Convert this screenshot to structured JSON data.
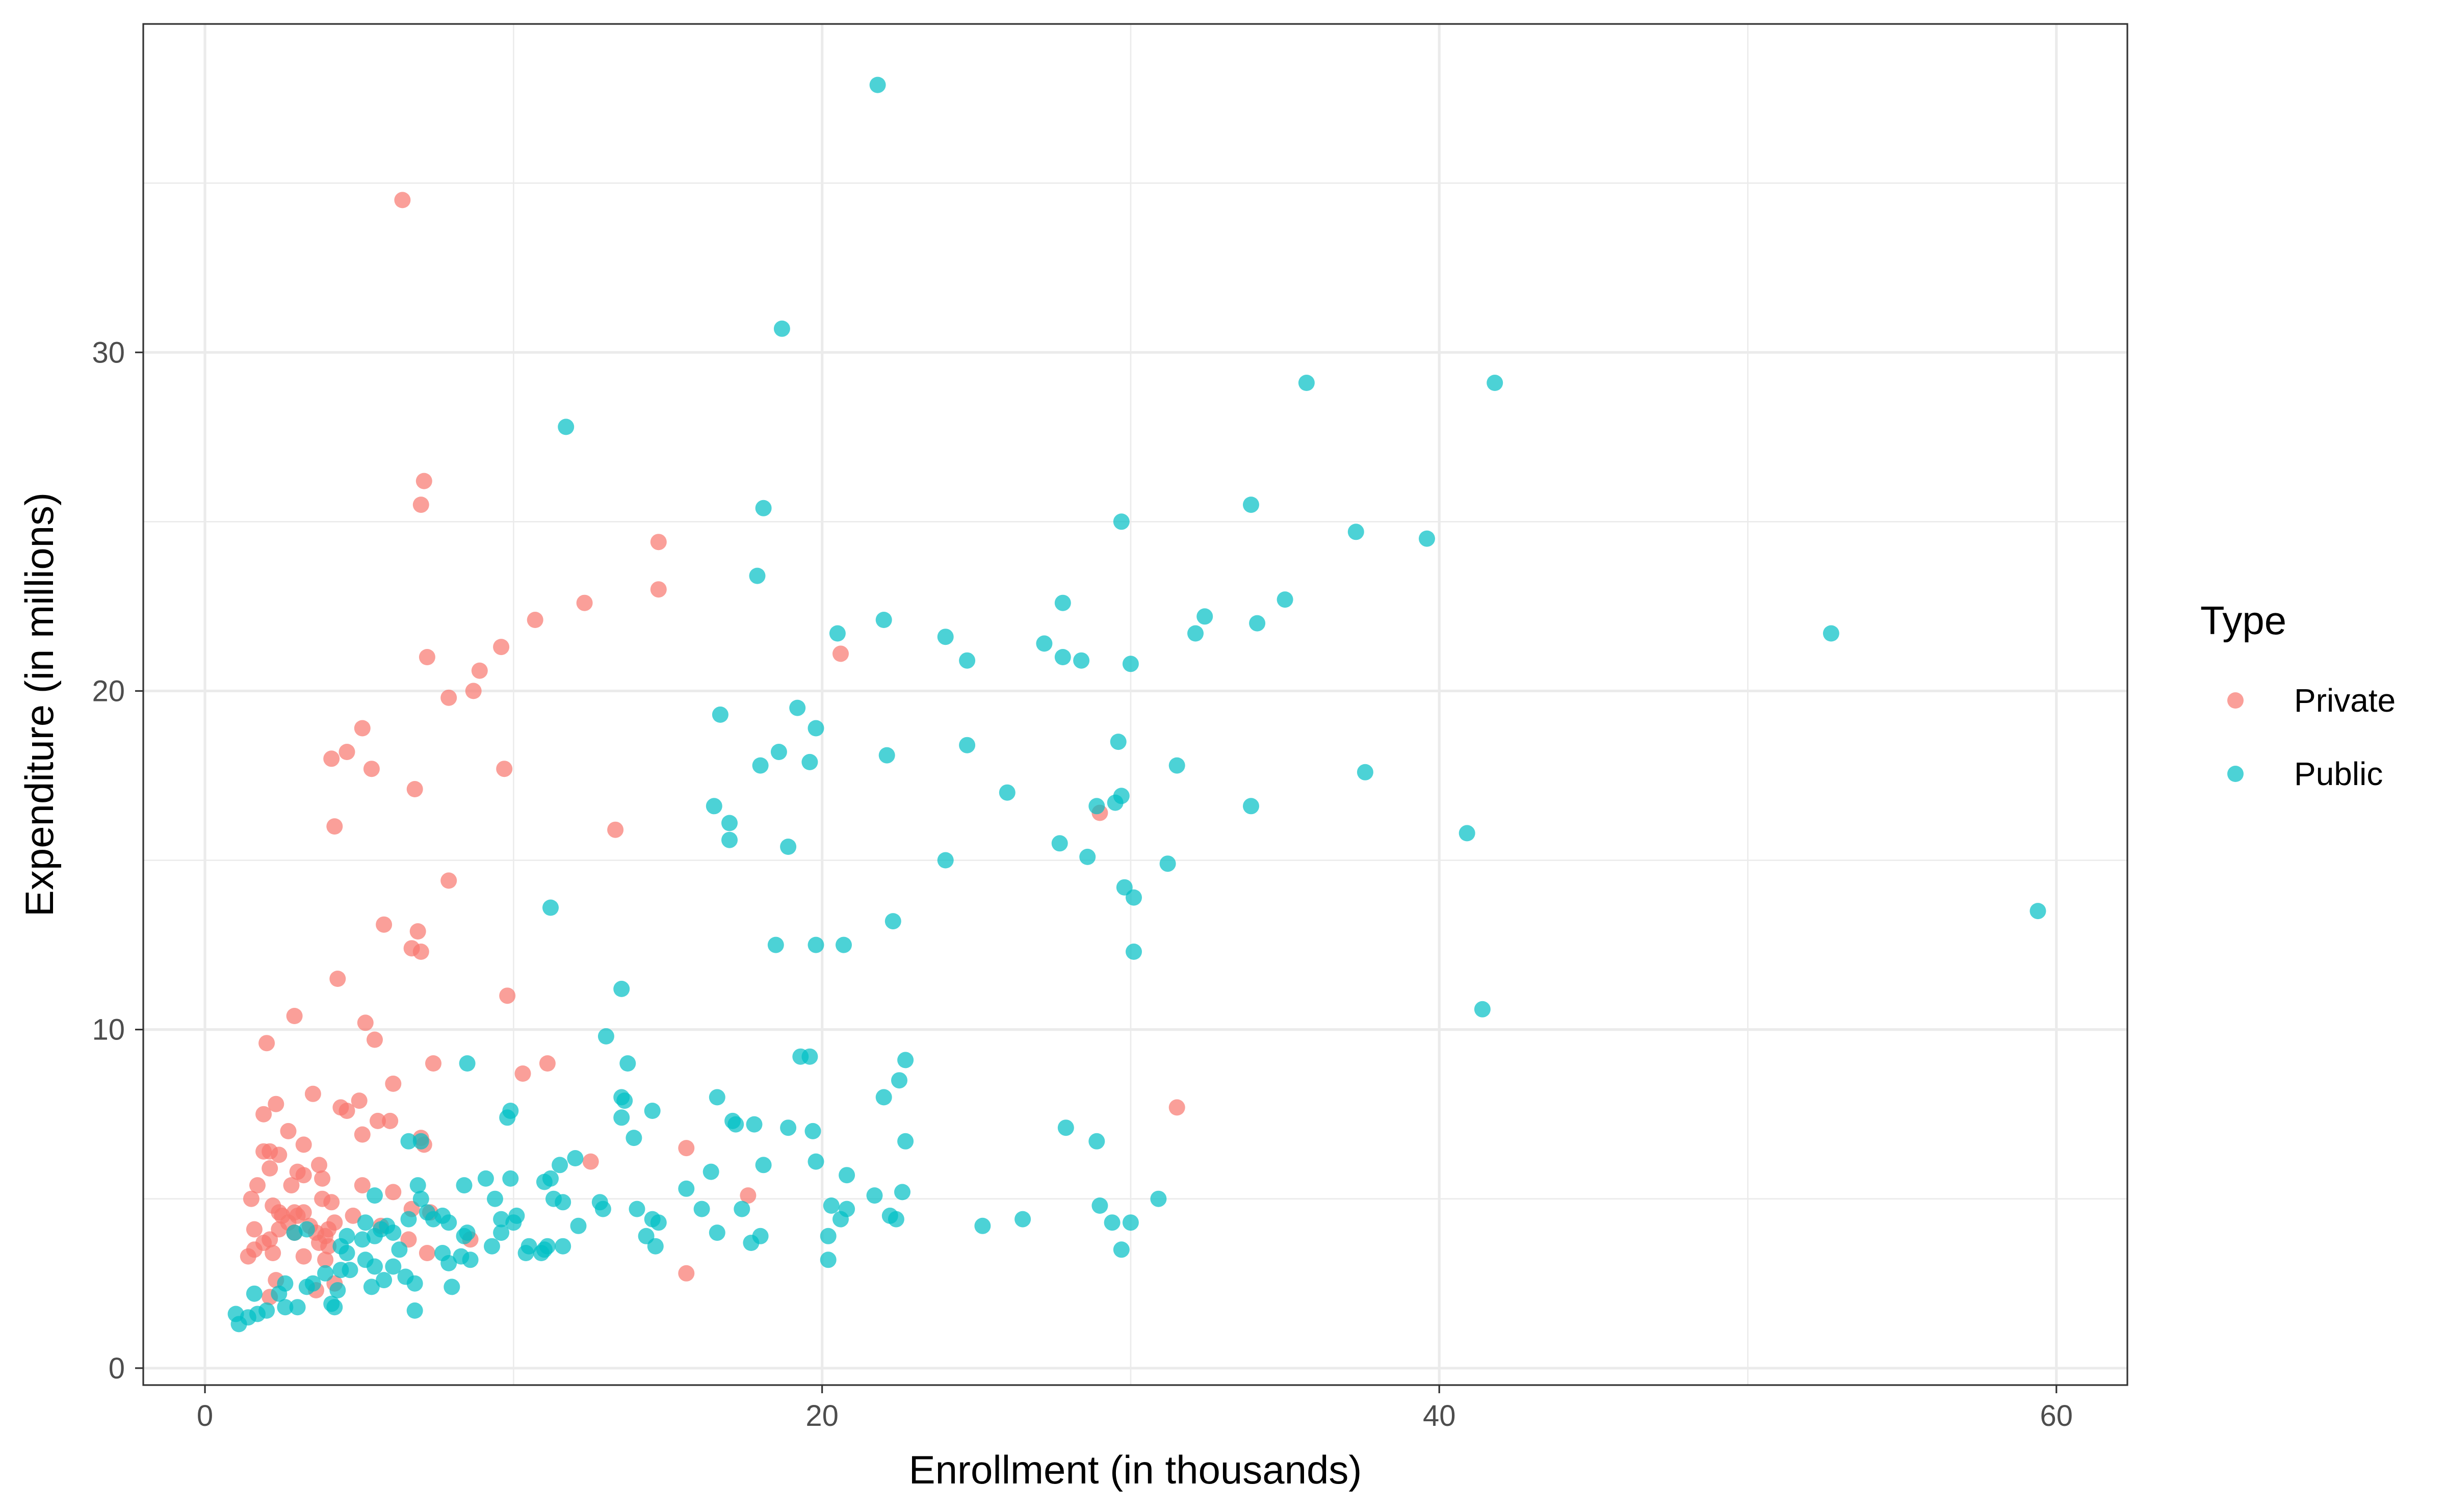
{
  "chart_data": {
    "type": "scatter",
    "title": "",
    "xlabel": "Enrollment (in thousands)",
    "ylabel": "Expenditure (in millions)",
    "xlim": [
      -2,
      62.3
    ],
    "ylim": [
      -0.5,
      39.7
    ],
    "xticks": [
      0,
      20,
      40,
      60
    ],
    "yticks": [
      0,
      10,
      20,
      30
    ],
    "xtick_labels": [
      "0",
      "20",
      "40",
      "60"
    ],
    "ytick_labels": [
      "0",
      "10",
      "20",
      "30"
    ],
    "grid": true,
    "legend": {
      "title": "Type",
      "position": "right"
    },
    "series": [
      {
        "name": "Private",
        "color": "#F8766D",
        "points": [
          [
            6.4,
            34.5
          ],
          [
            7.1,
            26.2
          ],
          [
            7.0,
            25.5
          ],
          [
            14.7,
            24.4
          ],
          [
            14.7,
            23.0
          ],
          [
            12.3,
            22.6
          ],
          [
            10.7,
            22.1
          ],
          [
            20.6,
            21.1
          ],
          [
            9.6,
            21.3
          ],
          [
            7.2,
            21.0
          ],
          [
            8.9,
            20.6
          ],
          [
            8.7,
            20.0
          ],
          [
            7.9,
            19.8
          ],
          [
            5.1,
            18.9
          ],
          [
            4.6,
            18.2
          ],
          [
            4.1,
            18.0
          ],
          [
            5.4,
            17.7
          ],
          [
            9.7,
            17.7
          ],
          [
            6.8,
            17.1
          ],
          [
            4.2,
            16.0
          ],
          [
            13.3,
            15.9
          ],
          [
            29.0,
            16.4
          ],
          [
            7.9,
            14.4
          ],
          [
            5.8,
            13.1
          ],
          [
            6.9,
            12.9
          ],
          [
            6.7,
            12.4
          ],
          [
            7.0,
            12.3
          ],
          [
            4.3,
            11.5
          ],
          [
            9.8,
            11.0
          ],
          [
            2.9,
            10.4
          ],
          [
            5.2,
            10.2
          ],
          [
            5.5,
            9.7
          ],
          [
            2.0,
            9.6
          ],
          [
            7.4,
            9.0
          ],
          [
            11.1,
            9.0
          ],
          [
            10.3,
            8.7
          ],
          [
            6.1,
            8.4
          ],
          [
            3.5,
            8.1
          ],
          [
            5.0,
            7.9
          ],
          [
            2.3,
            7.8
          ],
          [
            31.5,
            7.7
          ],
          [
            1.9,
            7.5
          ],
          [
            4.4,
            7.7
          ],
          [
            4.6,
            7.6
          ],
          [
            5.6,
            7.3
          ],
          [
            6.0,
            7.3
          ],
          [
            2.7,
            7.0
          ],
          [
            5.1,
            6.9
          ],
          [
            7.0,
            6.8
          ],
          [
            7.1,
            6.6
          ],
          [
            3.2,
            6.6
          ],
          [
            2.1,
            6.4
          ],
          [
            2.4,
            6.3
          ],
          [
            1.9,
            6.4
          ],
          [
            15.6,
            6.5
          ],
          [
            12.5,
            6.1
          ],
          [
            3.7,
            6.0
          ],
          [
            3.0,
            5.8
          ],
          [
            3.2,
            5.7
          ],
          [
            2.1,
            5.9
          ],
          [
            3.8,
            5.6
          ],
          [
            1.7,
            5.4
          ],
          [
            2.8,
            5.4
          ],
          [
            5.1,
            5.4
          ],
          [
            6.1,
            5.2
          ],
          [
            17.6,
            5.1
          ],
          [
            3.8,
            5.0
          ],
          [
            4.1,
            4.9
          ],
          [
            1.5,
            5.0
          ],
          [
            2.2,
            4.8
          ],
          [
            2.4,
            4.6
          ],
          [
            2.9,
            4.6
          ],
          [
            3.0,
            4.5
          ],
          [
            2.5,
            4.5
          ],
          [
            3.2,
            4.6
          ],
          [
            4.8,
            4.5
          ],
          [
            7.3,
            4.6
          ],
          [
            6.7,
            4.7
          ],
          [
            2.7,
            4.3
          ],
          [
            3.4,
            4.2
          ],
          [
            4.2,
            4.3
          ],
          [
            5.7,
            4.2
          ],
          [
            1.6,
            4.1
          ],
          [
            2.4,
            4.1
          ],
          [
            2.9,
            4.0
          ],
          [
            3.6,
            4.0
          ],
          [
            4.0,
            4.1
          ],
          [
            6.6,
            3.8
          ],
          [
            8.6,
            3.8
          ],
          [
            2.1,
            3.8
          ],
          [
            3.9,
            3.9
          ],
          [
            1.9,
            3.7
          ],
          [
            3.7,
            3.7
          ],
          [
            1.6,
            3.5
          ],
          [
            2.2,
            3.4
          ],
          [
            4.0,
            3.6
          ],
          [
            7.2,
            3.4
          ],
          [
            1.4,
            3.3
          ],
          [
            3.2,
            3.3
          ],
          [
            3.9,
            3.2
          ],
          [
            15.6,
            2.8
          ],
          [
            2.3,
            2.6
          ],
          [
            4.2,
            2.5
          ],
          [
            3.6,
            2.3
          ],
          [
            2.1,
            2.1
          ]
        ]
      },
      {
        "name": "Public",
        "color": "#00BFC4",
        "points": [
          [
            21.8,
            37.9
          ],
          [
            18.7,
            30.7
          ],
          [
            11.7,
            27.8
          ],
          [
            35.7,
            29.1
          ],
          [
            41.8,
            29.1
          ],
          [
            18.1,
            25.4
          ],
          [
            29.7,
            25.0
          ],
          [
            33.9,
            25.5
          ],
          [
            37.3,
            24.7
          ],
          [
            39.6,
            24.5
          ],
          [
            17.9,
            23.4
          ],
          [
            35.0,
            22.7
          ],
          [
            27.8,
            22.6
          ],
          [
            32.4,
            22.2
          ],
          [
            22.0,
            22.1
          ],
          [
            32.1,
            21.7
          ],
          [
            20.5,
            21.7
          ],
          [
            24.0,
            21.6
          ],
          [
            27.2,
            21.4
          ],
          [
            34.1,
            22.0
          ],
          [
            52.7,
            21.7
          ],
          [
            24.7,
            20.9
          ],
          [
            27.8,
            21.0
          ],
          [
            28.4,
            20.9
          ],
          [
            30.0,
            20.8
          ],
          [
            19.2,
            19.5
          ],
          [
            16.7,
            19.3
          ],
          [
            19.8,
            18.9
          ],
          [
            24.7,
            18.4
          ],
          [
            29.6,
            18.5
          ],
          [
            18.6,
            18.2
          ],
          [
            22.1,
            18.1
          ],
          [
            19.6,
            17.9
          ],
          [
            18.0,
            17.8
          ],
          [
            31.5,
            17.8
          ],
          [
            37.6,
            17.6
          ],
          [
            26.0,
            17.0
          ],
          [
            29.7,
            16.9
          ],
          [
            29.5,
            16.7
          ],
          [
            28.9,
            16.6
          ],
          [
            16.5,
            16.6
          ],
          [
            33.9,
            16.6
          ],
          [
            17.0,
            16.1
          ],
          [
            17.0,
            15.6
          ],
          [
            27.7,
            15.5
          ],
          [
            18.9,
            15.4
          ],
          [
            28.6,
            15.1
          ],
          [
            24.0,
            15.0
          ],
          [
            31.2,
            14.9
          ],
          [
            40.9,
            15.8
          ],
          [
            29.8,
            14.2
          ],
          [
            30.1,
            13.9
          ],
          [
            11.2,
            13.6
          ],
          [
            59.4,
            13.5
          ],
          [
            22.3,
            13.2
          ],
          [
            18.5,
            12.5
          ],
          [
            19.8,
            12.5
          ],
          [
            20.7,
            12.5
          ],
          [
            30.1,
            12.3
          ],
          [
            13.5,
            11.2
          ],
          [
            41.4,
            10.6
          ],
          [
            13.0,
            9.8
          ],
          [
            19.3,
            9.2
          ],
          [
            19.6,
            9.2
          ],
          [
            22.7,
            9.1
          ],
          [
            8.5,
            9.0
          ],
          [
            13.7,
            9.0
          ],
          [
            22.5,
            8.5
          ],
          [
            16.6,
            8.0
          ],
          [
            22.0,
            8.0
          ],
          [
            13.6,
            7.9
          ],
          [
            13.5,
            8.0
          ],
          [
            14.5,
            7.6
          ],
          [
            9.9,
            7.6
          ],
          [
            9.8,
            7.4
          ],
          [
            13.5,
            7.4
          ],
          [
            17.1,
            7.3
          ],
          [
            17.2,
            7.2
          ],
          [
            17.8,
            7.2
          ],
          [
            18.9,
            7.1
          ],
          [
            19.7,
            7.0
          ],
          [
            27.9,
            7.1
          ],
          [
            28.9,
            6.7
          ],
          [
            22.7,
            6.7
          ],
          [
            6.6,
            6.7
          ],
          [
            7.0,
            6.7
          ],
          [
            13.9,
            6.8
          ],
          [
            12.0,
            6.2
          ],
          [
            11.5,
            6.0
          ],
          [
            19.8,
            6.1
          ],
          [
            18.1,
            6.0
          ],
          [
            16.4,
            5.8
          ],
          [
            20.8,
            5.7
          ],
          [
            9.1,
            5.6
          ],
          [
            9.9,
            5.6
          ],
          [
            11.0,
            5.5
          ],
          [
            11.2,
            5.6
          ],
          [
            6.9,
            5.4
          ],
          [
            8.4,
            5.4
          ],
          [
            15.6,
            5.3
          ],
          [
            21.7,
            5.1
          ],
          [
            22.6,
            5.2
          ],
          [
            5.5,
            5.1
          ],
          [
            11.3,
            5.0
          ],
          [
            11.6,
            4.9
          ],
          [
            12.8,
            4.9
          ],
          [
            7.0,
            5.0
          ],
          [
            9.4,
            5.0
          ],
          [
            30.9,
            5.0
          ],
          [
            16.1,
            4.7
          ],
          [
            17.4,
            4.7
          ],
          [
            20.3,
            4.8
          ],
          [
            20.8,
            4.7
          ],
          [
            29.0,
            4.8
          ],
          [
            12.9,
            4.7
          ],
          [
            14.0,
            4.7
          ],
          [
            7.2,
            4.6
          ],
          [
            7.7,
            4.5
          ],
          [
            10.1,
            4.5
          ],
          [
            7.4,
            4.4
          ],
          [
            6.6,
            4.4
          ],
          [
            7.9,
            4.3
          ],
          [
            5.9,
            4.2
          ],
          [
            9.6,
            4.4
          ],
          [
            10.0,
            4.3
          ],
          [
            14.5,
            4.4
          ],
          [
            14.7,
            4.3
          ],
          [
            20.6,
            4.4
          ],
          [
            22.2,
            4.5
          ],
          [
            22.4,
            4.4
          ],
          [
            26.5,
            4.4
          ],
          [
            25.2,
            4.2
          ],
          [
            29.4,
            4.3
          ],
          [
            30.0,
            4.3
          ],
          [
            5.2,
            4.3
          ],
          [
            5.7,
            4.1
          ],
          [
            12.1,
            4.2
          ],
          [
            3.3,
            4.1
          ],
          [
            2.9,
            4.0
          ],
          [
            4.6,
            3.9
          ],
          [
            5.5,
            3.9
          ],
          [
            6.1,
            4.0
          ],
          [
            8.5,
            4.0
          ],
          [
            9.6,
            4.0
          ],
          [
            14.3,
            3.9
          ],
          [
            16.6,
            4.0
          ],
          [
            18.0,
            3.9
          ],
          [
            20.2,
            3.9
          ],
          [
            4.4,
            3.6
          ],
          [
            5.1,
            3.8
          ],
          [
            8.4,
            3.9
          ],
          [
            9.3,
            3.6
          ],
          [
            10.5,
            3.6
          ],
          [
            11.0,
            3.5
          ],
          [
            11.1,
            3.6
          ],
          [
            11.6,
            3.6
          ],
          [
            4.6,
            3.4
          ],
          [
            5.2,
            3.2
          ],
          [
            6.3,
            3.5
          ],
          [
            7.7,
            3.4
          ],
          [
            8.3,
            3.3
          ],
          [
            10.4,
            3.4
          ],
          [
            10.9,
            3.4
          ],
          [
            14.6,
            3.6
          ],
          [
            17.7,
            3.7
          ],
          [
            5.5,
            3.0
          ],
          [
            6.1,
            3.0
          ],
          [
            7.9,
            3.1
          ],
          [
            4.4,
            2.9
          ],
          [
            3.9,
            2.8
          ],
          [
            4.7,
            2.9
          ],
          [
            8.6,
            3.2
          ],
          [
            20.2,
            3.2
          ],
          [
            29.7,
            3.5
          ],
          [
            6.5,
            2.7
          ],
          [
            6.8,
            2.5
          ],
          [
            8.0,
            2.4
          ],
          [
            3.5,
            2.5
          ],
          [
            4.3,
            2.3
          ],
          [
            5.4,
            2.4
          ],
          [
            5.8,
            2.6
          ],
          [
            2.6,
            2.5
          ],
          [
            3.3,
            2.4
          ],
          [
            2.4,
            2.2
          ],
          [
            1.6,
            2.2
          ],
          [
            4.1,
            1.9
          ],
          [
            2.0,
            1.7
          ],
          [
            2.6,
            1.8
          ],
          [
            3.0,
            1.8
          ],
          [
            4.2,
            1.8
          ],
          [
            6.8,
            1.7
          ],
          [
            1.0,
            1.6
          ],
          [
            1.4,
            1.5
          ],
          [
            1.7,
            1.6
          ],
          [
            1.1,
            1.3
          ]
        ]
      }
    ]
  }
}
